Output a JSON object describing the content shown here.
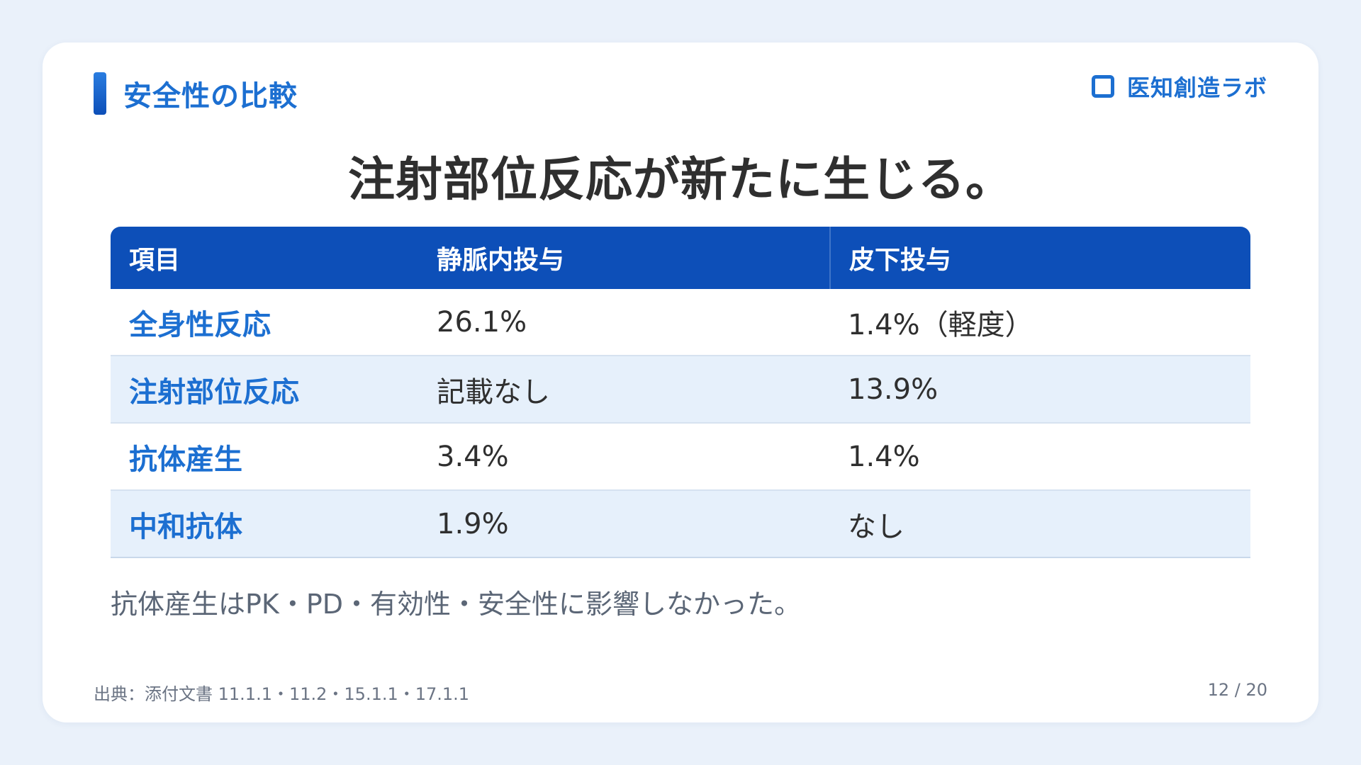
{
  "header": {
    "section_title": "安全性の比較",
    "brand_name": "医知創造ラボ"
  },
  "headline": "注射部位反応が新たに生じる。",
  "table": {
    "columns": [
      "項目",
      "静脈内投与",
      "皮下投与"
    ],
    "rows": [
      [
        "全身性反応",
        "26.1%",
        "1.4%（軽度）"
      ],
      [
        "注射部位反応",
        "記載なし",
        "13.9%"
      ],
      [
        "抗体産生",
        "3.4%",
        "1.4%"
      ],
      [
        "中和抗体",
        "1.9%",
        "なし"
      ]
    ]
  },
  "note": "抗体産生はPK・PD・有効性・安全性に影響しなかった。",
  "footer": {
    "source": "出典：添付文書 11.1.1・11.2・15.1.1・17.1.1",
    "page": "12 / 20"
  },
  "colors": {
    "accent": "#1c6fd1",
    "header_bg": "#0d4fb8",
    "alt_row_bg": "#e6f0fb",
    "page_bg": "#eaf1fa"
  }
}
